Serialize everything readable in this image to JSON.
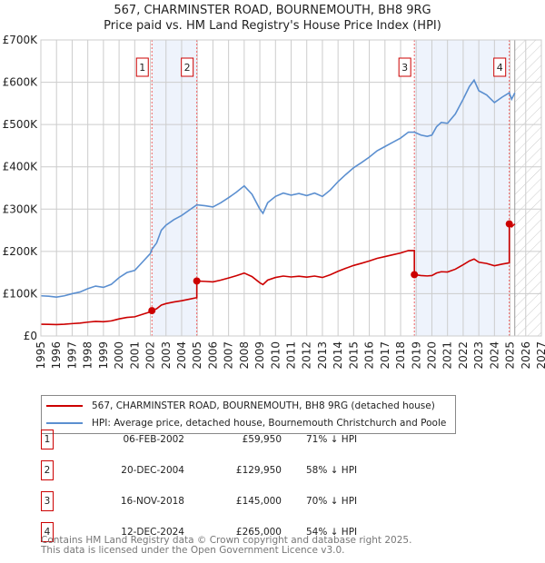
{
  "chart_data": {
    "type": "line",
    "title": "567, CHARMINSTER ROAD, BOURNEMOUTH, BH8 9RG",
    "subtitle": "Price paid vs. HM Land Registry's House Price Index (HPI)",
    "xlim": [
      1995,
      2027
    ],
    "ylim": [
      0,
      700000
    ],
    "x_ticks": [
      "1995",
      "1996",
      "1997",
      "1998",
      "1999",
      "2000",
      "2001",
      "2002",
      "2003",
      "2004",
      "2005",
      "2006",
      "2007",
      "2008",
      "2009",
      "2010",
      "2011",
      "2012",
      "2013",
      "2014",
      "2015",
      "2016",
      "2017",
      "2018",
      "2019",
      "2020",
      "2021",
      "2022",
      "2023",
      "2024",
      "2025",
      "2026",
      "2027"
    ],
    "y_ticks": [
      {
        "value": 0,
        "label": "£0"
      },
      {
        "value": 100000,
        "label": "£100K"
      },
      {
        "value": 200000,
        "label": "£200K"
      },
      {
        "value": 300000,
        "label": "£300K"
      },
      {
        "value": 400000,
        "label": "£400K"
      },
      {
        "value": 500000,
        "label": "£500K"
      },
      {
        "value": 600000,
        "label": "£600K"
      },
      {
        "value": 700000,
        "label": "£700K"
      }
    ],
    "grid": true,
    "forecast_start": 2025.3,
    "colors": {
      "property": "#cc0000",
      "hpi": "#5b8fd0",
      "shade": "#eef3fc",
      "marker_border": "#cc0000"
    },
    "series": [
      {
        "name": "hpi",
        "label": "HPI: Average price, detached house, Bournemouth Christchurch and Poole",
        "x": [
          1995,
          1995.5,
          1996,
          1996.5,
          1997,
          1997.5,
          1998,
          1998.5,
          1999,
          1999.5,
          2000,
          2000.5,
          2001,
          2001.5,
          2002,
          2002.1,
          2002.4,
          2002.7,
          2003,
          2003.5,
          2004,
          2004.5,
          2004.97,
          2005.5,
          2006,
          2006.5,
          2007,
          2007.5,
          2008,
          2008.5,
          2009,
          2009.2,
          2009.5,
          2010,
          2010.5,
          2011,
          2011.5,
          2012,
          2012.5,
          2013,
          2013.5,
          2014,
          2014.5,
          2015,
          2015.5,
          2016,
          2016.5,
          2017,
          2017.5,
          2018,
          2018.5,
          2018.88,
          2019.3,
          2019.7,
          2020,
          2020.3,
          2020.6,
          2021,
          2021.5,
          2022,
          2022.4,
          2022.7,
          2023,
          2023.5,
          2024,
          2024.5,
          2024.95,
          2025.1,
          2025.3
        ],
        "values": [
          95000,
          94000,
          92000,
          95000,
          100000,
          104000,
          112000,
          118000,
          115000,
          122000,
          138000,
          150000,
          155000,
          175000,
          195000,
          205000,
          220000,
          250000,
          262000,
          275000,
          285000,
          298000,
          310000,
          308000,
          305000,
          315000,
          327000,
          340000,
          355000,
          335000,
          300000,
          290000,
          315000,
          330000,
          338000,
          333000,
          337000,
          332000,
          338000,
          330000,
          345000,
          365000,
          382000,
          398000,
          410000,
          423000,
          438000,
          448000,
          458000,
          468000,
          482000,
          482000,
          475000,
          472000,
          475000,
          495000,
          505000,
          503000,
          525000,
          560000,
          590000,
          605000,
          580000,
          570000,
          552000,
          565000,
          575000,
          560000,
          575000
        ]
      },
      {
        "name": "property",
        "label": "567, CHARMINSTER ROAD, BOURNEMOUTH, BH8 9RG (detached house)"
      }
    ],
    "sales": [
      {
        "id": "1",
        "year": 2002.1,
        "date": "06-FEB-2002",
        "price": 59950,
        "price_label": "£59,950",
        "delta": "71% ↓ HPI"
      },
      {
        "id": "2",
        "year": 2004.97,
        "date": "20-DEC-2004",
        "price": 129950,
        "price_label": "£129,950",
        "delta": "58% ↓ HPI"
      },
      {
        "id": "3",
        "year": 2018.88,
        "date": "16-NOV-2018",
        "price": 145000,
        "price_label": "£145,000",
        "delta": "70% ↓ HPI"
      },
      {
        "id": "4",
        "year": 2024.95,
        "date": "12-DEC-2024",
        "price": 265000,
        "price_label": "£265,000",
        "delta": "54% ↓ HPI"
      }
    ]
  },
  "footer": {
    "line1": "Contains HM Land Registry data © Crown copyright and database right 2025.",
    "line2": "This data is licensed under the Open Government Licence v3.0."
  }
}
